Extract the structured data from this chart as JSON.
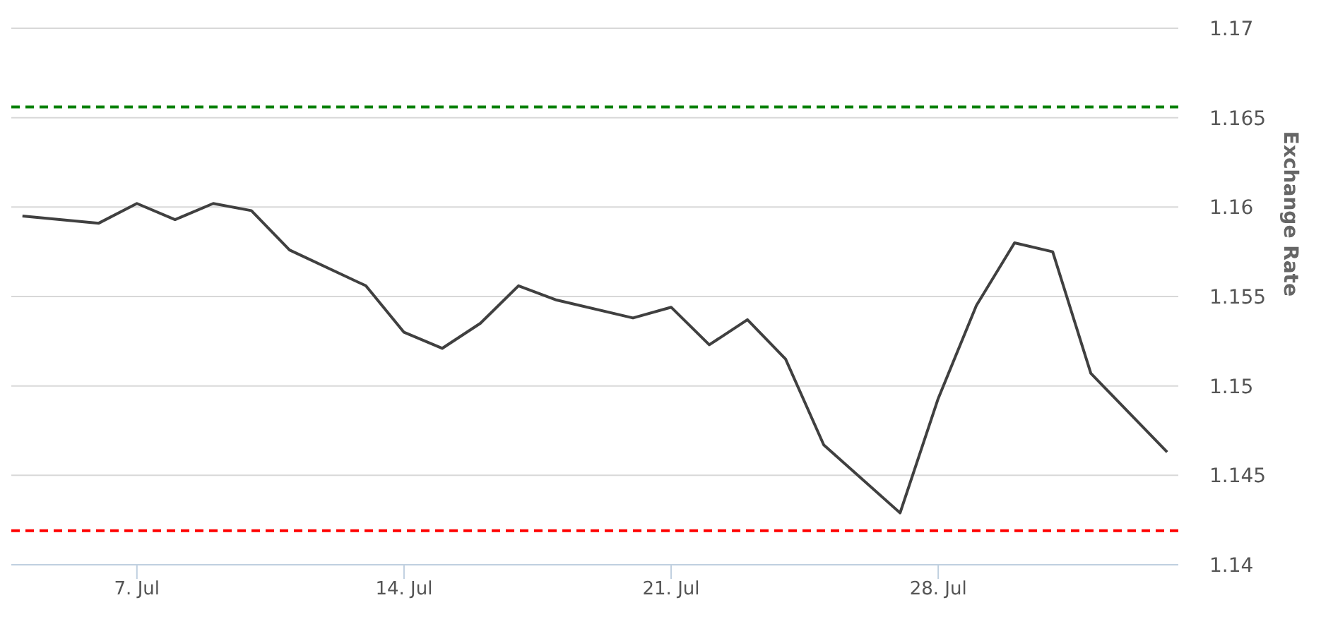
{
  "chart_data": {
    "type": "line",
    "ylabel": "Exchange Rate",
    "x": [
      "--07-04",
      "--07-06",
      "--07-07",
      "--07-08",
      "--07-09",
      "--07-10",
      "--07-11",
      "--07-13",
      "--07-14",
      "--07-15",
      "--07-16",
      "--07-17",
      "--07-18",
      "--07-20",
      "--07-21",
      "--07-22",
      "--07-23",
      "--07-24",
      "--07-25",
      "--07-27",
      "--07-28",
      "--07-29",
      "--07-30",
      "--07-31",
      "--08-01",
      "--08-03"
    ],
    "series": [
      {
        "color": "#404040",
        "values": [
          1.1595,
          1.1591,
          1.1602,
          1.1593,
          1.1602,
          1.1598,
          1.1576,
          1.1556,
          1.153,
          1.1521,
          1.1535,
          1.1556,
          1.1548,
          1.1538,
          1.1544,
          1.1523,
          1.1537,
          1.1515,
          1.1467,
          1.1429,
          1.1493,
          1.1545,
          1.158,
          1.1575,
          1.1507,
          1.1463
        ]
      }
    ],
    "xlim": [
      "--07-03T17:00",
      "--08-03T07:00"
    ],
    "xticks": [
      {
        "value": "--07-07",
        "label": "7. Jul"
      },
      {
        "value": "--07-14",
        "label": "14. Jul"
      },
      {
        "value": "--07-21",
        "label": "21. Jul"
      },
      {
        "value": "--07-28",
        "label": "28. Jul"
      }
    ],
    "ylim": [
      1.14,
      1.17
    ],
    "yticks": [
      1.14,
      1.145,
      1.15,
      1.155,
      1.16,
      1.165,
      1.17
    ],
    "ref_lines": [
      {
        "axis": "y",
        "value": 1.1656,
        "color": "#008000",
        "line_style": "dashed"
      },
      {
        "axis": "y",
        "value": 1.1419,
        "color": "#ff0000",
        "line_style": "dashed"
      }
    ],
    "grid": "y",
    "legend": false,
    "marker": "none",
    "line_style": "solid"
  }
}
